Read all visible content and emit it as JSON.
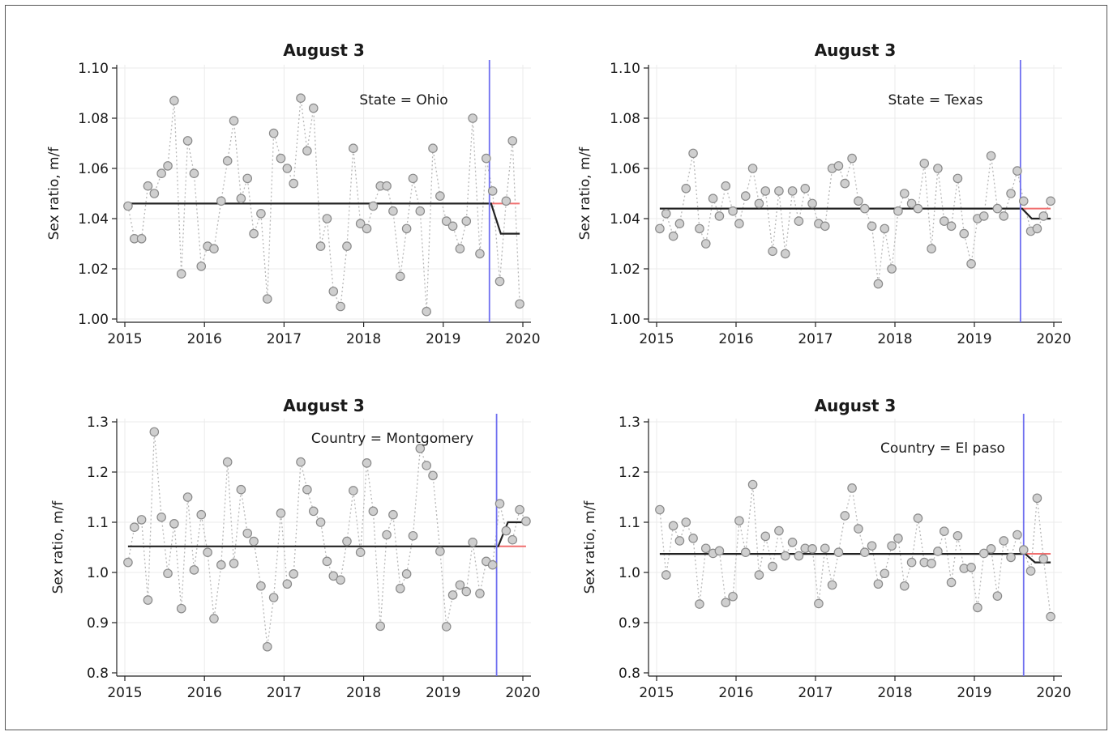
{
  "chart_data": [
    {
      "type": "scatter",
      "title": "August 3",
      "annotation": "State = Ohio",
      "ylabel": "Sex ratio, m/f",
      "xlabel": "",
      "xlim": [
        2015,
        2020
      ],
      "ylim": [
        1.0,
        1.1
      ],
      "xticks": [
        "2015",
        "2016",
        "2017",
        "2018",
        "2019",
        "2020"
      ],
      "yticks": [
        "1.00",
        "1.02",
        "1.04",
        "1.06",
        "1.08",
        "1.10"
      ],
      "grid": true,
      "event_x": 2019.58,
      "baseline": 1.046,
      "fit_after": 1.034,
      "x": [
        2015.04,
        2015.12,
        2015.21,
        2015.29,
        2015.37,
        2015.46,
        2015.54,
        2015.62,
        2015.71,
        2015.79,
        2015.87,
        2015.96,
        2016.04,
        2016.12,
        2016.21,
        2016.29,
        2016.37,
        2016.46,
        2016.54,
        2016.62,
        2016.71,
        2016.79,
        2016.87,
        2016.96,
        2017.04,
        2017.12,
        2017.21,
        2017.29,
        2017.37,
        2017.46,
        2017.54,
        2017.62,
        2017.71,
        2017.79,
        2017.87,
        2017.96,
        2018.04,
        2018.12,
        2018.21,
        2018.29,
        2018.37,
        2018.46,
        2018.54,
        2018.62,
        2018.71,
        2018.79,
        2018.87,
        2018.96,
        2019.04,
        2019.12,
        2019.21,
        2019.29,
        2019.37,
        2019.46,
        2019.54,
        2019.62,
        2019.71,
        2019.79,
        2019.87,
        2019.96
      ],
      "y": [
        1.045,
        1.032,
        1.032,
        1.053,
        1.05,
        1.058,
        1.061,
        1.087,
        1.018,
        1.071,
        1.058,
        1.021,
        1.029,
        1.028,
        1.047,
        1.063,
        1.079,
        1.048,
        1.056,
        1.034,
        1.042,
        1.008,
        1.074,
        1.064,
        1.06,
        1.054,
        1.088,
        1.067,
        1.084,
        1.029,
        1.04,
        1.011,
        1.005,
        1.029,
        1.068,
        1.038,
        1.036,
        1.045,
        1.053,
        1.053,
        1.043,
        1.017,
        1.036,
        1.056,
        1.043,
        1.003,
        1.068,
        1.049,
        1.039,
        1.037,
        1.028,
        1.039,
        1.08,
        1.026,
        1.064,
        1.051,
        1.015,
        1.047,
        1.071,
        1.006
      ]
    },
    {
      "type": "scatter",
      "title": "August 3",
      "annotation": "State = Texas",
      "ylabel": "Sex ratio, m/f",
      "xlabel": "",
      "xlim": [
        2015,
        2020
      ],
      "ylim": [
        1.0,
        1.1
      ],
      "xticks": [
        "2015",
        "2016",
        "2017",
        "2018",
        "2019",
        "2020"
      ],
      "yticks": [
        "1.00",
        "1.02",
        "1.04",
        "1.06",
        "1.08",
        "1.10"
      ],
      "grid": true,
      "event_x": 2019.58,
      "baseline": 1.044,
      "fit_after": 1.04,
      "x": [
        2015.04,
        2015.12,
        2015.21,
        2015.29,
        2015.37,
        2015.46,
        2015.54,
        2015.62,
        2015.71,
        2015.79,
        2015.87,
        2015.96,
        2016.04,
        2016.12,
        2016.21,
        2016.29,
        2016.37,
        2016.46,
        2016.54,
        2016.62,
        2016.71,
        2016.79,
        2016.87,
        2016.96,
        2017.04,
        2017.12,
        2017.21,
        2017.29,
        2017.37,
        2017.46,
        2017.54,
        2017.62,
        2017.71,
        2017.79,
        2017.87,
        2017.96,
        2018.04,
        2018.12,
        2018.21,
        2018.29,
        2018.37,
        2018.46,
        2018.54,
        2018.62,
        2018.71,
        2018.79,
        2018.87,
        2018.96,
        2019.04,
        2019.12,
        2019.21,
        2019.29,
        2019.37,
        2019.46,
        2019.54,
        2019.62,
        2019.71,
        2019.79,
        2019.87,
        2019.96
      ],
      "y": [
        1.036,
        1.042,
        1.033,
        1.038,
        1.052,
        1.066,
        1.036,
        1.03,
        1.048,
        1.041,
        1.053,
        1.043,
        1.038,
        1.049,
        1.06,
        1.046,
        1.051,
        1.027,
        1.051,
        1.026,
        1.051,
        1.039,
        1.052,
        1.046,
        1.038,
        1.037,
        1.06,
        1.061,
        1.054,
        1.064,
        1.047,
        1.044,
        1.037,
        1.014,
        1.036,
        1.02,
        1.043,
        1.05,
        1.046,
        1.044,
        1.062,
        1.028,
        1.06,
        1.039,
        1.037,
        1.056,
        1.034,
        1.022,
        1.04,
        1.041,
        1.065,
        1.044,
        1.041,
        1.05,
        1.059,
        1.047,
        1.035,
        1.036,
        1.041,
        1.047
      ]
    },
    {
      "type": "scatter",
      "title": "August 3",
      "annotation": "Country = Montgomery",
      "ylabel": "Sex ratio, m/f",
      "xlabel": "",
      "xlim": [
        2015,
        2020
      ],
      "ylim": [
        0.8,
        1.3
      ],
      "xticks": [
        "2015",
        "2016",
        "2017",
        "2018",
        "2019",
        "2020"
      ],
      "yticks": [
        "0.8",
        "0.9",
        "1.0",
        "1.1",
        "1.2",
        "1.3"
      ],
      "grid": true,
      "event_x": 2019.67,
      "baseline": 1.052,
      "fit_after": 1.1,
      "x": [
        2015.04,
        2015.12,
        2015.21,
        2015.29,
        2015.37,
        2015.46,
        2015.54,
        2015.62,
        2015.71,
        2015.79,
        2015.87,
        2015.96,
        2016.04,
        2016.12,
        2016.21,
        2016.29,
        2016.37,
        2016.46,
        2016.54,
        2016.62,
        2016.71,
        2016.79,
        2016.87,
        2016.96,
        2017.04,
        2017.12,
        2017.21,
        2017.29,
        2017.37,
        2017.46,
        2017.54,
        2017.62,
        2017.71,
        2017.79,
        2017.87,
        2017.96,
        2018.04,
        2018.12,
        2018.21,
        2018.29,
        2018.37,
        2018.46,
        2018.54,
        2018.62,
        2018.71,
        2018.79,
        2018.87,
        2018.96,
        2019.04,
        2019.12,
        2019.21,
        2019.29,
        2019.37,
        2019.46,
        2019.54,
        2019.62,
        2019.71,
        2019.79,
        2019.87,
        2019.96,
        2020.04
      ],
      "y": [
        1.02,
        1.09,
        1.105,
        0.945,
        1.28,
        1.11,
        0.998,
        1.097,
        0.928,
        1.15,
        1.005,
        1.115,
        1.04,
        0.908,
        1.015,
        1.22,
        1.018,
        1.165,
        1.078,
        1.062,
        0.973,
        0.852,
        0.95,
        1.118,
        0.977,
        0.997,
        1.22,
        1.165,
        1.122,
        1.1,
        1.022,
        0.993,
        0.985,
        1.062,
        1.163,
        1.04,
        1.218,
        1.122,
        0.893,
        1.075,
        1.115,
        0.968,
        0.997,
        1.073,
        1.247,
        1.213,
        1.193,
        1.042,
        0.892,
        0.955,
        0.975,
        0.962,
        1.06,
        0.958,
        1.022,
        1.015,
        1.137,
        1.083,
        1.065,
        1.125,
        1.102
      ]
    },
    {
      "type": "scatter",
      "title": "August 3",
      "annotation": "Country = El paso",
      "ylabel": "Sex ratio, m/f",
      "xlabel": "",
      "xlim": [
        2015,
        2020
      ],
      "ylim": [
        0.8,
        1.3
      ],
      "xticks": [
        "2015",
        "2016",
        "2017",
        "2018",
        "2019",
        "2020"
      ],
      "yticks": [
        "0.8",
        "0.9",
        "1.0",
        "1.1",
        "1.2",
        "1.3"
      ],
      "grid": true,
      "event_x": 2019.62,
      "baseline": 1.037,
      "fit_after": 1.02,
      "x": [
        2015.04,
        2015.12,
        2015.21,
        2015.29,
        2015.37,
        2015.46,
        2015.54,
        2015.62,
        2015.71,
        2015.79,
        2015.87,
        2015.96,
        2016.04,
        2016.12,
        2016.21,
        2016.29,
        2016.37,
        2016.46,
        2016.54,
        2016.62,
        2016.71,
        2016.79,
        2016.87,
        2016.96,
        2017.04,
        2017.12,
        2017.21,
        2017.29,
        2017.37,
        2017.46,
        2017.54,
        2017.62,
        2017.71,
        2017.79,
        2017.87,
        2017.96,
        2018.04,
        2018.12,
        2018.21,
        2018.29,
        2018.37,
        2018.46,
        2018.54,
        2018.62,
        2018.71,
        2018.79,
        2018.87,
        2018.96,
        2019.04,
        2019.12,
        2019.21,
        2019.29,
        2019.37,
        2019.46,
        2019.54,
        2019.62,
        2019.71,
        2019.79,
        2019.87,
        2019.96
      ],
      "y": [
        1.125,
        0.995,
        1.093,
        1.063,
        1.1,
        1.068,
        0.937,
        1.048,
        1.038,
        1.043,
        0.94,
        0.952,
        1.103,
        1.04,
        1.175,
        0.995,
        1.072,
        1.012,
        1.083,
        1.033,
        1.06,
        1.033,
        1.048,
        1.047,
        0.938,
        1.048,
        0.975,
        1.04,
        1.113,
        1.168,
        1.087,
        1.04,
        1.053,
        0.977,
        0.998,
        1.053,
        1.068,
        0.973,
        1.02,
        1.108,
        1.02,
        1.018,
        1.042,
        1.082,
        0.98,
        1.073,
        1.008,
        1.01,
        0.93,
        1.038,
        1.047,
        0.953,
        1.063,
        1.03,
        1.075,
        1.045,
        1.003,
        1.148,
        1.027,
        0.912
      ]
    }
  ]
}
